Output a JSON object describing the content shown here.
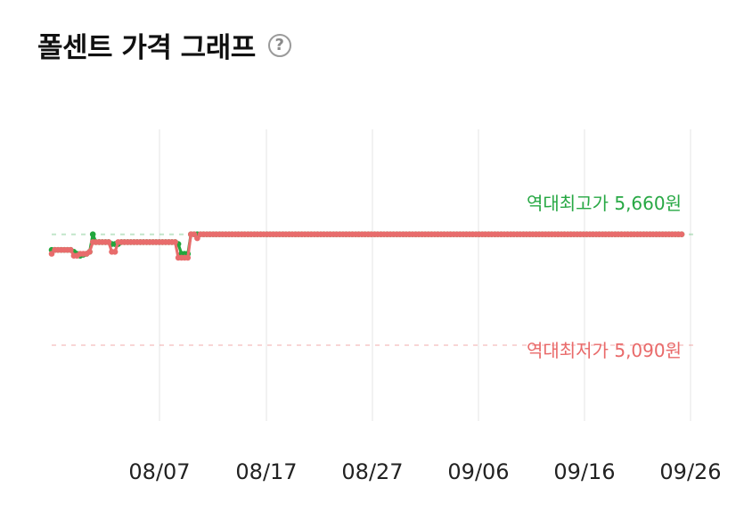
{
  "header": {
    "title": "폴센트 가격 그래프",
    "help_icon": "?"
  },
  "chart_data": {
    "type": "line",
    "x_ticks": [
      "08/07",
      "08/17",
      "08/27",
      "09/06",
      "09/16",
      "09/26"
    ],
    "ylim": [
      4700,
      6200
    ],
    "grid": "vertical",
    "reference_lines": [
      {
        "label": "역대최고가 5,660원",
        "value": 5660,
        "color": "#27a844"
      },
      {
        "label": "역대최저가 5,090원",
        "value": 5090,
        "color": "#e96a6a"
      }
    ],
    "series": [
      {
        "color": "#22a63d",
        "values": [
          5580,
          5580,
          5580,
          5580,
          5580,
          5580,
          5580,
          5570,
          5560,
          5550,
          5555,
          5560,
          5570,
          5660,
          5620,
          5620,
          5620,
          5620,
          5620,
          5610,
          5610,
          5610,
          5620,
          5620,
          5620,
          5620,
          5620,
          5620,
          5620,
          5620,
          5620,
          5620,
          5620,
          5620,
          5620,
          5620,
          5620,
          5620,
          5620,
          5620,
          5610,
          5560,
          5560,
          5560,
          5660,
          5660,
          5660,
          5660,
          5660,
          5660,
          5660,
          5660,
          5660,
          5660,
          5660,
          5660,
          5660,
          5660,
          5660,
          5660,
          5660,
          5660,
          5660,
          5660,
          5660,
          5660,
          5660,
          5660,
          5660,
          5660,
          5660,
          5660,
          5660,
          5660,
          5660,
          5660,
          5660,
          5660,
          5660,
          5660,
          5660,
          5660,
          5660,
          5660,
          5660,
          5660,
          5660,
          5660,
          5660,
          5660,
          5660,
          5660,
          5660,
          5660,
          5660,
          5660,
          5660,
          5660,
          5660,
          5660,
          5660,
          5660,
          5660,
          5660,
          5660,
          5660,
          5660,
          5660,
          5660,
          5660,
          5660,
          5660,
          5660,
          5660,
          5660,
          5660,
          5660,
          5660,
          5660,
          5660,
          5660,
          5660,
          5660,
          5660,
          5660,
          5660,
          5660,
          5660,
          5660,
          5660,
          5660,
          5660,
          5660,
          5660,
          5660,
          5660,
          5660,
          5660,
          5660,
          5660,
          5660,
          5660,
          5660,
          5660,
          5660,
          5660,
          5660,
          5660,
          5660,
          5660,
          5660,
          5660,
          5660,
          5660,
          5660,
          5660,
          5660,
          5660,
          5660,
          5660,
          5660,
          5660,
          5660,
          5660,
          5660,
          5660,
          5660,
          5660,
          5660,
          5660,
          5660,
          5660,
          5660,
          5660,
          5660,
          5660,
          5660,
          5660,
          5660,
          5660,
          5660,
          5660,
          5660,
          5660,
          5660,
          5660,
          5660,
          5660,
          5660,
          5660,
          5660,
          5660,
          5660,
          5660,
          5660,
          5660,
          5660,
          5660,
          5660,
          5660
        ]
      },
      {
        "color": "#e86c6c",
        "values": [
          5560,
          5580,
          5580,
          5580,
          5580,
          5580,
          5580,
          5550,
          5550,
          5560,
          5560,
          5560,
          5570,
          5620,
          5620,
          5620,
          5620,
          5620,
          5620,
          5570,
          5570,
          5620,
          5620,
          5620,
          5620,
          5620,
          5620,
          5620,
          5620,
          5620,
          5620,
          5620,
          5620,
          5620,
          5620,
          5620,
          5620,
          5620,
          5620,
          5620,
          5540,
          5540,
          5540,
          5540,
          5660,
          5660,
          5640,
          5660,
          5660,
          5660,
          5660,
          5660,
          5660,
          5660,
          5660,
          5660,
          5660,
          5660,
          5660,
          5660,
          5660,
          5660,
          5660,
          5660,
          5660,
          5660,
          5660,
          5660,
          5660,
          5660,
          5660,
          5660,
          5660,
          5660,
          5660,
          5660,
          5660,
          5660,
          5660,
          5660,
          5660,
          5660,
          5660,
          5660,
          5660,
          5660,
          5660,
          5660,
          5660,
          5660,
          5660,
          5660,
          5660,
          5660,
          5660,
          5660,
          5660,
          5660,
          5660,
          5660,
          5660,
          5660,
          5660,
          5660,
          5660,
          5660,
          5660,
          5660,
          5660,
          5660,
          5660,
          5660,
          5660,
          5660,
          5660,
          5660,
          5660,
          5660,
          5660,
          5660,
          5660,
          5660,
          5660,
          5660,
          5660,
          5660,
          5660,
          5660,
          5660,
          5660,
          5660,
          5660,
          5660,
          5660,
          5660,
          5660,
          5660,
          5660,
          5660,
          5660,
          5660,
          5660,
          5660,
          5660,
          5660,
          5660,
          5660,
          5660,
          5660,
          5660,
          5660,
          5660,
          5660,
          5660,
          5660,
          5660,
          5660,
          5660,
          5660,
          5660,
          5660,
          5660,
          5660,
          5660,
          5660,
          5660,
          5660,
          5660,
          5660,
          5660,
          5660,
          5660,
          5660,
          5660,
          5660,
          5660,
          5660,
          5660,
          5660,
          5660,
          5660,
          5660,
          5660,
          5660,
          5660,
          5660,
          5660,
          5660,
          5660,
          5660,
          5660,
          5660,
          5660,
          5660,
          5660,
          5660,
          5660,
          5660,
          5660,
          5660
        ]
      }
    ]
  }
}
